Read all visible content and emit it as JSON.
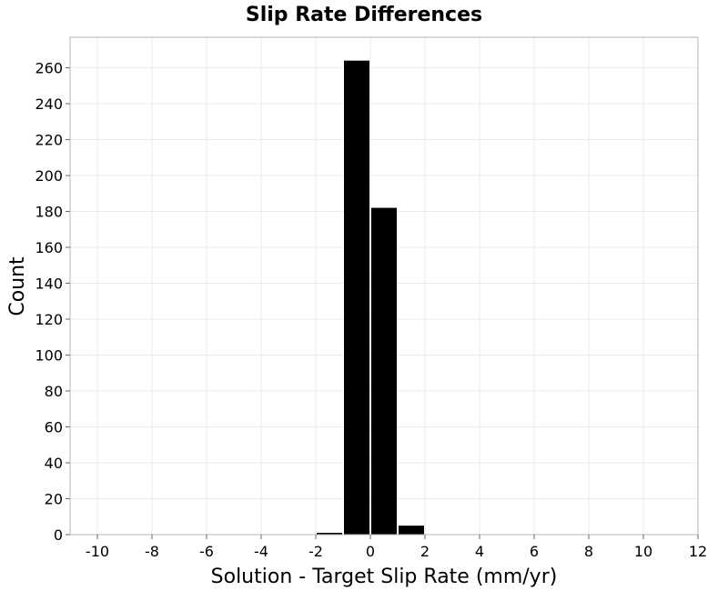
{
  "chart_data": {
    "type": "bar",
    "title": "Slip Rate Differences",
    "xlabel": "Solution - Target Slip Rate (mm/yr)",
    "ylabel": "Count",
    "xlim": [
      -11,
      12
    ],
    "ylim": [
      0,
      277
    ],
    "x_ticks": [
      -10,
      -8,
      -6,
      -4,
      -2,
      0,
      2,
      4,
      6,
      8,
      10,
      12
    ],
    "y_ticks": [
      0,
      20,
      40,
      60,
      80,
      100,
      120,
      140,
      160,
      180,
      200,
      220,
      240,
      260
    ],
    "bin_width": 1,
    "bins": [
      {
        "x0": -2,
        "x1": -1,
        "count": 1
      },
      {
        "x0": -1,
        "x1": 0,
        "count": 264
      },
      {
        "x0": 0,
        "x1": 1,
        "count": 182
      },
      {
        "x0": 1,
        "x1": 2,
        "count": 5
      }
    ],
    "bar_color": "#000000",
    "grid": true,
    "grid_color": "#ebebeb",
    "frame_color": "#b4b4b4"
  }
}
